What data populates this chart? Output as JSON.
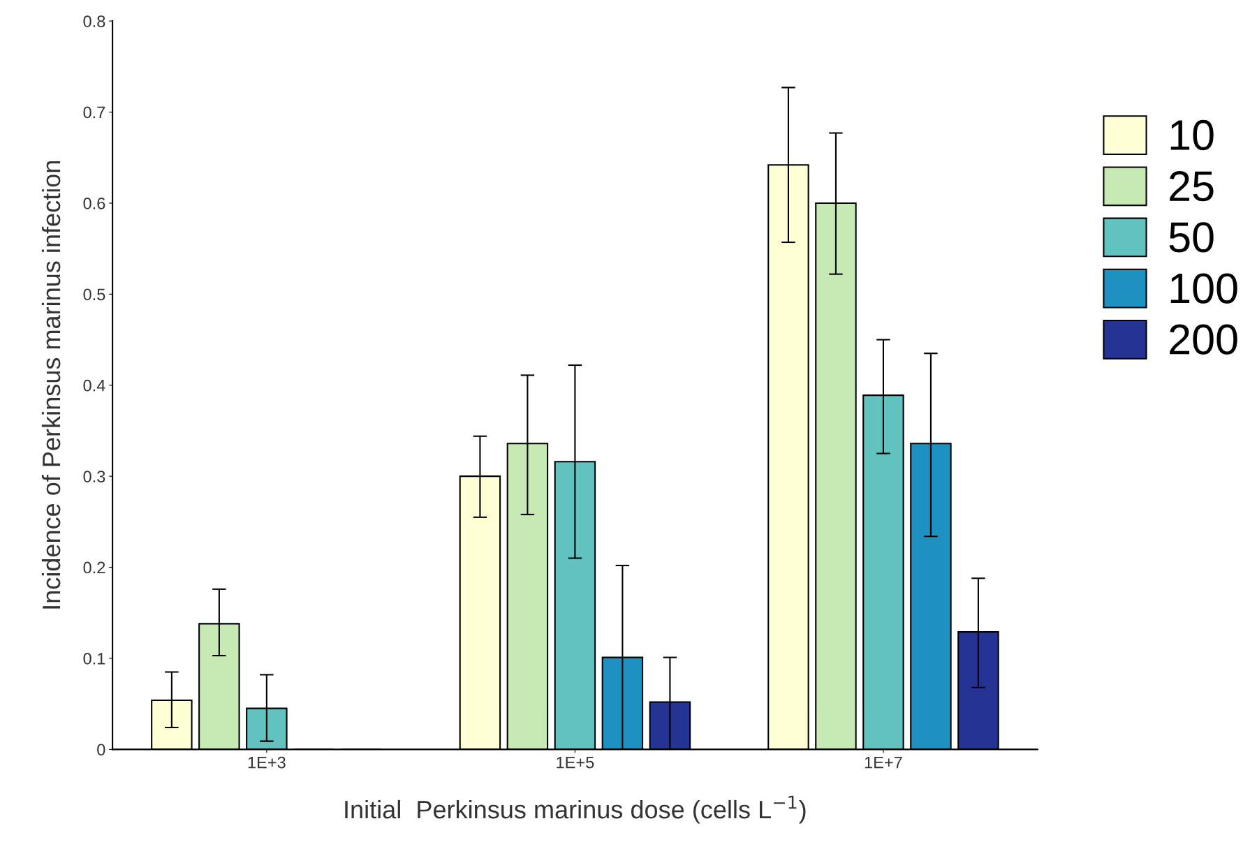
{
  "chart_data": {
    "type": "bar",
    "xlabel": "Initial  Perkinsus marinus dose (cells L$^{−1}$)",
    "ylabel": "Incidence of Perkinsus marinus infection",
    "categories": [
      "1E+3",
      "1E+5",
      "1E+7"
    ],
    "series": [
      {
        "name": "10",
        "color": "#ffffd5",
        "values": [
          0.054,
          0.3,
          0.642
        ],
        "errors": [
          [
            0.024,
            0.085
          ],
          [
            0.255,
            0.344
          ],
          [
            0.557,
            0.727
          ]
        ]
      },
      {
        "name": "25",
        "color": "#c7e9b4",
        "values": [
          0.138,
          0.336,
          0.6
        ],
        "errors": [
          [
            0.103,
            0.176
          ],
          [
            0.258,
            0.411
          ],
          [
            0.522,
            0.677
          ]
        ]
      },
      {
        "name": "50",
        "color": "#62c2bf",
        "values": [
          0.045,
          0.316,
          0.389
        ],
        "errors": [
          [
            0.009,
            0.082
          ],
          [
            0.21,
            0.422
          ],
          [
            0.325,
            0.45
          ]
        ]
      },
      {
        "name": "100",
        "color": "#1d91c0",
        "values": [
          0,
          0.101,
          0.336
        ],
        "errors": [
          null,
          [
            0,
            0.202
          ],
          [
            0.234,
            0.435
          ]
        ]
      },
      {
        "name": "200",
        "color": "#253494",
        "values": [
          0,
          0.052,
          0.129
        ],
        "errors": [
          null,
          [
            0,
            0.101
          ],
          [
            0.068,
            0.188
          ]
        ]
      }
    ],
    "ylim": [
      0,
      0.8
    ],
    "yticks": [
      0,
      0.1,
      0.2,
      0.3,
      0.4,
      0.5,
      0.6,
      0.7,
      0.8
    ],
    "grid": false,
    "legend": "right"
  }
}
